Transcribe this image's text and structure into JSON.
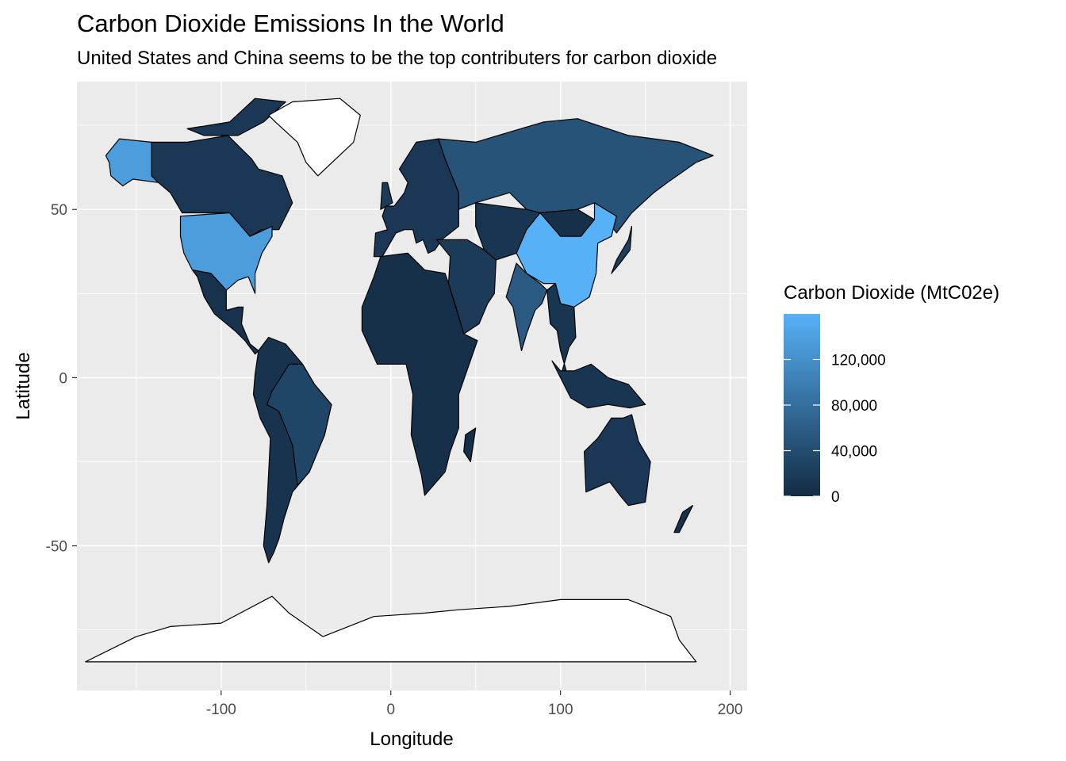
{
  "title": "Carbon Dioxide Emissions In the World",
  "subtitle": "United States and China seems to be the top contributers for carbon dioxide",
  "colors": {
    "panel_bg": "#ebebeb",
    "grid": "#ffffff",
    "low": "#132b43",
    "high": "#56b1f7",
    "no_data": "#ffffff",
    "border": "#000000"
  },
  "chart_data": {
    "type": "choropleth map",
    "xlabel": "Longitude",
    "ylabel": "Latitude",
    "xlim": [
      -185,
      210
    ],
    "ylim": [
      -93,
      88
    ],
    "x_ticks": [
      -100,
      0,
      100,
      200
    ],
    "x_tick_labels": [
      "-100",
      "0",
      "100",
      "200"
    ],
    "y_ticks": [
      50,
      0,
      -50
    ],
    "y_tick_labels": [
      "50",
      "0",
      "-50"
    ],
    "grid": true,
    "legend": {
      "title": "Carbon Dioxide (MtC02e)",
      "position": "right",
      "range": [
        0,
        160000
      ],
      "breaks": [
        0,
        40000,
        80000,
        120000
      ],
      "break_labels": [
        "0",
        "40,000",
        "80,000",
        "120,000"
      ]
    },
    "regions": [
      {
        "name": "United States",
        "relative_level": 0.85
      },
      {
        "name": "Alaska (United States)",
        "relative_level": 0.85
      },
      {
        "name": "China",
        "relative_level": 1.0
      },
      {
        "name": "Russia",
        "relative_level": 0.3
      },
      {
        "name": "India",
        "relative_level": 0.35
      },
      {
        "name": "Canada",
        "relative_level": 0.1
      },
      {
        "name": "Brazil",
        "relative_level": 0.2
      },
      {
        "name": "Australia",
        "relative_level": 0.1
      },
      {
        "name": "Greenland",
        "relative_level": null
      },
      {
        "name": "Antarctica",
        "relative_level": null
      }
    ]
  }
}
